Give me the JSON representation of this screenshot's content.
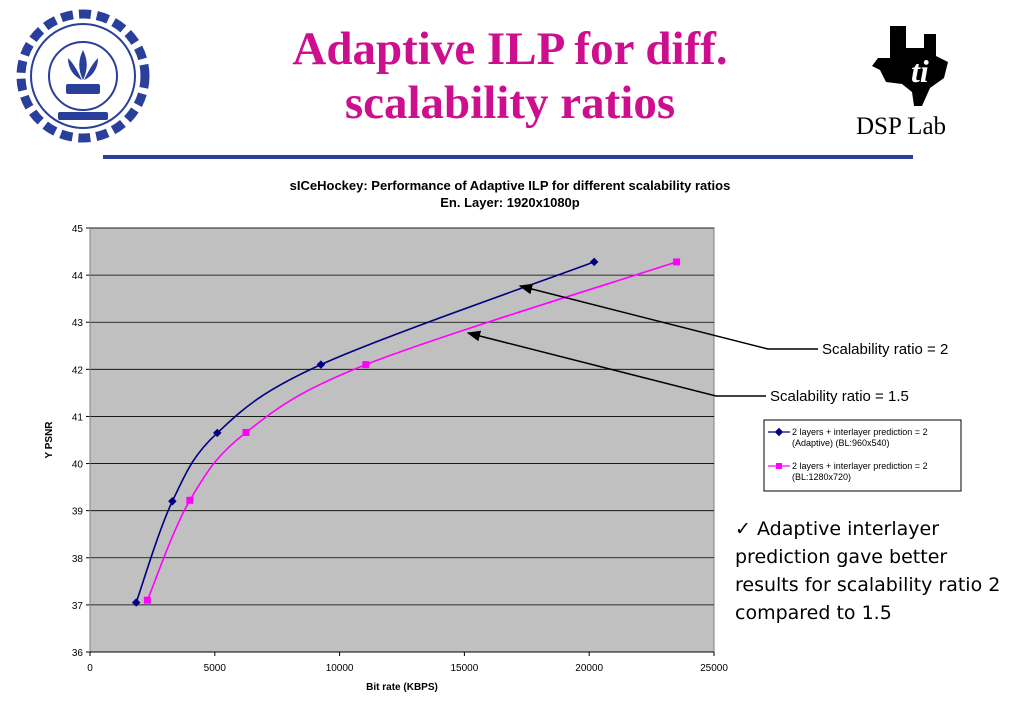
{
  "slide": {
    "title_line1": "Adaptive ILP for diff.",
    "title_line2": "scalability ratios",
    "lab_label": "DSP Lab",
    "note_check": "✓",
    "note_text": "Adaptive interlayer prediction gave better results for scalability ratio 2 compared to 1.5",
    "colors": {
      "title": "#cc0e8f",
      "rule": "#2a3f9a"
    }
  },
  "annotations": [
    {
      "text": "Scalability ratio = 2",
      "points_to_series": 0
    },
    {
      "text": "Scalability ratio = 1.5",
      "points_to_series": 1
    }
  ],
  "chart_data": {
    "type": "line",
    "title": "sICeHockey: Performance of Adaptive ILP for different scalability ratios",
    "subtitle": "En. Layer: 1920x1080p",
    "xlabel": "Bit rate (KBPS)",
    "ylabel": "Y PSNR",
    "xlim": [
      0,
      25000
    ],
    "ylim": [
      36,
      45
    ],
    "xticks": [
      0,
      5000,
      10000,
      15000,
      20000,
      25000
    ],
    "yticks": [
      36,
      37,
      38,
      39,
      40,
      41,
      42,
      43,
      44,
      45
    ],
    "grid": "horizontal",
    "legend_position": "right",
    "series": [
      {
        "name": "2 layers + interlayer prediction = 2 (Adaptive) (BL:960x540)",
        "color": "#000080",
        "marker": "diamond",
        "points": [
          [
            1850,
            37.05
          ],
          [
            3300,
            39.2
          ],
          [
            5100,
            40.65
          ],
          [
            9250,
            42.1
          ],
          [
            20200,
            44.28
          ]
        ]
      },
      {
        "name": "2 layers + interlayer prediction = 2 (BL:1280x720)",
        "color": "#ff00ff",
        "marker": "square",
        "points": [
          [
            2300,
            37.1
          ],
          [
            4000,
            39.22
          ],
          [
            6250,
            40.66
          ],
          [
            11050,
            42.1
          ],
          [
            23500,
            44.28
          ]
        ]
      }
    ]
  }
}
